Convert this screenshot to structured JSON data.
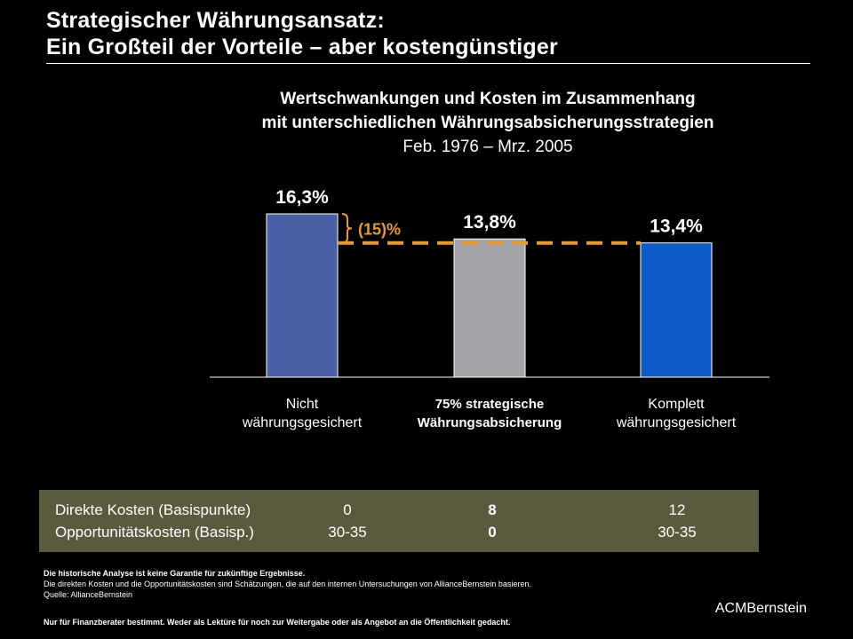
{
  "title": {
    "line1": "Strategischer Währungsansatz:",
    "line2": "Ein Großteil der Vorteile – aber kostengünstiger"
  },
  "heading": {
    "line1": "Wertschwankungen und Kosten im Zusammenhang",
    "line2": "mit unterschiedlichen Währungsabsicherungsstrategien",
    "period": "Feb. 1976 – Mrz. 2005"
  },
  "chart_data": {
    "type": "bar",
    "title": "Wertschwankungen und Kosten im Zusammenhang mit unterschiedlichen Währungsabsicherungsstrategien",
    "subtitle": "Feb. 1976 – Mrz. 2005",
    "categories": [
      [
        "Nicht",
        "währungsgesichert"
      ],
      [
        "75% strategische",
        "Währungsabsicherung"
      ],
      [
        "Komplett",
        "währungsgesichert"
      ]
    ],
    "values": [
      16.3,
      13.8,
      13.4
    ],
    "value_labels": [
      "16,3%",
      "13,8%",
      "13,4%"
    ],
    "colors": [
      "#4a5fa6",
      "#a3a5a8",
      "#0d5cc8"
    ],
    "highlight_category": 1,
    "ylim": [
      0,
      20
    ],
    "xlabel": "",
    "ylabel": "",
    "grid": false,
    "annotation": {
      "text": "(15)%",
      "color": "#e69a35",
      "from_category": 0,
      "to_category": 2
    }
  },
  "cost_table": {
    "rows": [
      {
        "label": "Direkte Kosten (Basispunkte)",
        "values": [
          "0",
          "8",
          "12"
        ]
      },
      {
        "label": "Opportunitätskosten (Basisp.)",
        "values": [
          "30-35",
          "0",
          "30-35"
        ]
      }
    ]
  },
  "notes": {
    "disclaimer": "Die historische Analyse ist keine Garantie für zukünftige Ergebnisse.",
    "line2": "Die direkten Kosten und die Opportunitätskosten sind Schätzungen, die auf den internen Untersuchungen von AllianceBernstein basieren.",
    "source": "Quelle: AllianceBernstein"
  },
  "footer": "Nur für Finanzberater bestimmt. Weder als Lektüre für noch zur Weitergabe oder als Angebot an die Öffentlichkeit gedacht.",
  "logo": "ACMBernstein"
}
